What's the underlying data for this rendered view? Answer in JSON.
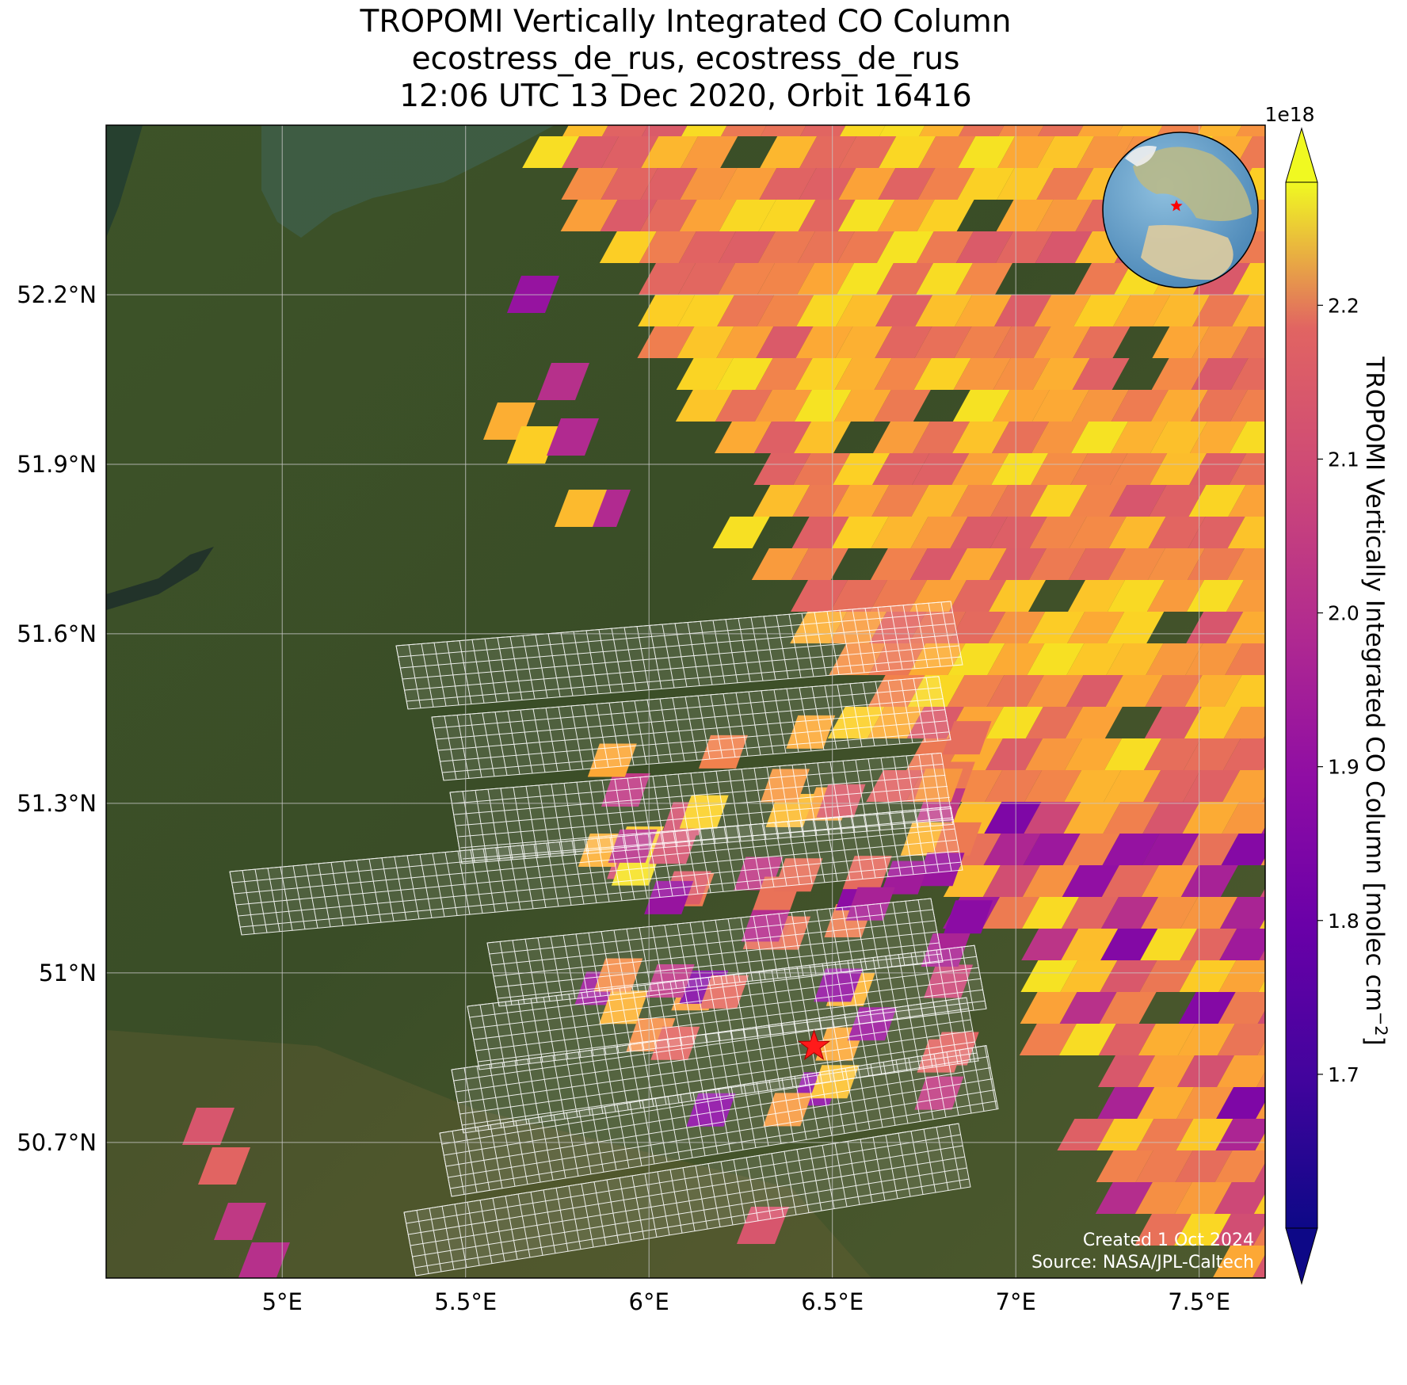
{
  "title": {
    "line1": "TROPOMI Vertically Integrated CO Column",
    "line2": "ecostress_de_rus, ecostress_de_rus",
    "line3": "12:06 UTC 13 Dec 2020, Orbit 16416"
  },
  "map": {
    "lon_range": [
      4.52,
      7.68
    ],
    "lat_range": [
      50.46,
      52.5
    ],
    "lon_ticks": [
      5.0,
      5.5,
      6.0,
      6.5,
      7.0,
      7.5
    ],
    "lon_tick_labels": [
      "5°E",
      "5.5°E",
      "6°E",
      "6.5°E",
      "7°E",
      "7.5°E"
    ],
    "lat_ticks": [
      50.7,
      51.0,
      51.3,
      51.6,
      51.9,
      52.2
    ],
    "lat_tick_labels": [
      "50.7°N",
      "51°N",
      "51.3°N",
      "51.6°N",
      "51.9°N",
      "52.2°N"
    ],
    "gridlines": true,
    "basemap": "satellite imagery",
    "target_marker": {
      "icon": "red-star-icon",
      "lon": 6.45,
      "lat": 50.87,
      "color": "#ff1a1a"
    },
    "inset_globe": {
      "icon": "globe-icon",
      "placement": "top-right"
    },
    "credit_line1": "Created 1 Oct 2024",
    "credit_line2": "Source: NASA/JPL-Caltech"
  },
  "colorbar": {
    "label": "TROPOMI Vertically Integrated CO Column [molec cm",
    "label_exponent": "−2",
    "label_close": "]",
    "multiplier": "1e18",
    "colormap": "plasma",
    "vmin": 1.6,
    "vmax": 2.28,
    "ticks": [
      1.7,
      1.8,
      1.9,
      2.0,
      2.1,
      2.2
    ],
    "tick_labels": [
      "1.7",
      "1.8",
      "1.9",
      "2.0",
      "2.1",
      "2.2"
    ],
    "extend": "both"
  }
}
